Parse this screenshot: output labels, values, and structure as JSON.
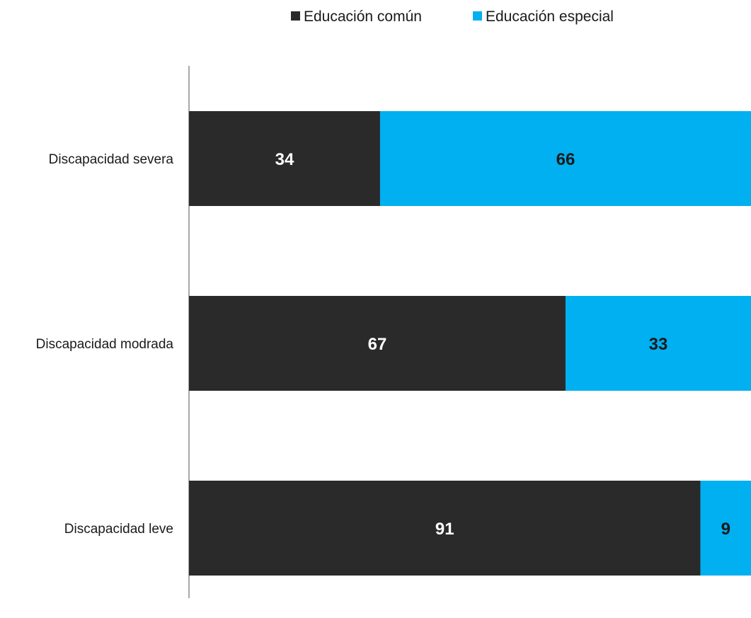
{
  "chart_data": {
    "type": "bar",
    "orientation": "horizontal",
    "stacked": true,
    "categories": [
      "Discapacidad severa",
      "Discapacidad modrada",
      "Discapacidad leve"
    ],
    "series": [
      {
        "name": "Educación común",
        "values": [
          34,
          67,
          91
        ],
        "color": "#2b2a2a",
        "label_color": "#ffffff"
      },
      {
        "name": "Educación especial",
        "values": [
          66,
          33,
          9
        ],
        "color": "#00b0f0",
        "label_color": "#1a1a1a"
      }
    ],
    "xlim": [
      0,
      100
    ],
    "grid": false,
    "legend_position": "top-center",
    "title": "",
    "xlabel": "",
    "ylabel": ""
  }
}
